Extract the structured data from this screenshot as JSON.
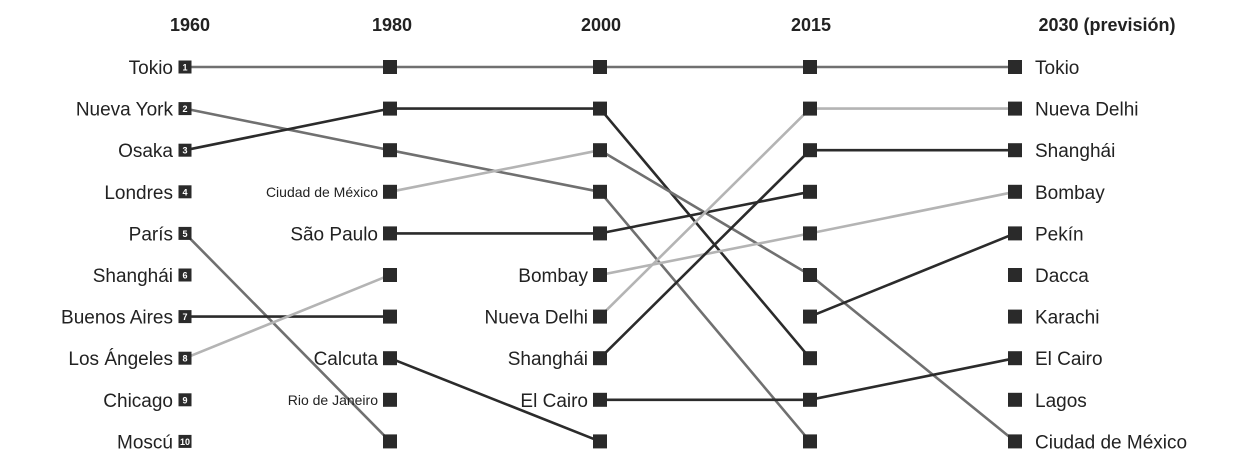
{
  "chart_data": {
    "type": "bump",
    "columns": [
      "1960",
      "1980",
      "2000",
      "2015",
      "2030 (previsión)"
    ],
    "ranks": [
      1,
      2,
      3,
      4,
      5,
      6,
      7,
      8,
      9,
      10
    ],
    "rank_labels": [
      "1",
      "2",
      "3",
      "4",
      "5",
      "6",
      "7",
      "8",
      "9",
      "10"
    ],
    "labels": [
      [
        "Tokio",
        "Nueva York",
        "Osaka",
        "Londres",
        "París",
        "Shanghái",
        "Buenos Aires",
        "Los Ángeles",
        "Chicago",
        "Moscú"
      ],
      [
        "",
        "",
        "",
        "Ciudad de México",
        "São Paulo",
        "",
        "",
        "Calcuta",
        "Rio de Janeiro",
        ""
      ],
      [
        "",
        "",
        "",
        "",
        "",
        "Bombay",
        "Nueva Delhi",
        "Shanghái",
        "El Cairo",
        ""
      ],
      [],
      [
        "Tokio",
        "Nueva Delhi",
        "Shanghái",
        "Bombay",
        "Pekín",
        "Dacca",
        "Karachi",
        "El Cairo",
        "Lagos",
        "Ciudad de México"
      ]
    ],
    "small_labels": [
      "Ciudad de México",
      "Rio de Janeiro"
    ],
    "colors": {
      "dark": "#2b2b2b",
      "mid": "#707070",
      "light": "#b4b4b4",
      "marker": "#2a2a2a"
    },
    "lines": [
      {
        "from": [
          1,
          1
        ],
        "to": [
          2,
          1
        ],
        "tone": "mid"
      },
      {
        "from": [
          2,
          1
        ],
        "to": [
          3,
          1
        ],
        "tone": "mid"
      },
      {
        "from": [
          3,
          1
        ],
        "to": [
          4,
          1
        ],
        "tone": "mid"
      },
      {
        "from": [
          4,
          1
        ],
        "to": [
          5,
          1
        ],
        "tone": "mid"
      },
      {
        "from": [
          1,
          2
        ],
        "to": [
          2,
          3
        ],
        "tone": "mid"
      },
      {
        "from": [
          2,
          3
        ],
        "to": [
          3,
          4
        ],
        "tone": "mid"
      },
      {
        "from": [
          3,
          4
        ],
        "to": [
          4,
          10
        ],
        "tone": "mid"
      },
      {
        "from": [
          1,
          3
        ],
        "to": [
          2,
          2
        ],
        "tone": "dark"
      },
      {
        "from": [
          2,
          2
        ],
        "to": [
          3,
          2
        ],
        "tone": "dark"
      },
      {
        "from": [
          3,
          2
        ],
        "to": [
          4,
          8
        ],
        "tone": "dark"
      },
      {
        "from": [
          1,
          5
        ],
        "to": [
          2,
          10
        ],
        "tone": "mid"
      },
      {
        "from": [
          1,
          7
        ],
        "to": [
          2,
          7
        ],
        "tone": "dark"
      },
      {
        "from": [
          1,
          8
        ],
        "to": [
          2,
          6
        ],
        "tone": "light"
      },
      {
        "from": [
          2,
          4
        ],
        "to": [
          3,
          3
        ],
        "tone": "light"
      },
      {
        "from": [
          3,
          3
        ],
        "to": [
          4,
          6
        ],
        "tone": "mid"
      },
      {
        "from": [
          4,
          6
        ],
        "to": [
          5,
          10
        ],
        "tone": "mid"
      },
      {
        "from": [
          2,
          5
        ],
        "to": [
          3,
          5
        ],
        "tone": "dark"
      },
      {
        "from": [
          3,
          5
        ],
        "to": [
          4,
          4
        ],
        "tone": "dark"
      },
      {
        "from": [
          2,
          8
        ],
        "to": [
          3,
          10
        ],
        "tone": "dark"
      },
      {
        "from": [
          3,
          6
        ],
        "to": [
          4,
          5
        ],
        "tone": "light"
      },
      {
        "from": [
          4,
          5
        ],
        "to": [
          5,
          4
        ],
        "tone": "light"
      },
      {
        "from": [
          3,
          7
        ],
        "to": [
          4,
          2
        ],
        "tone": "light"
      },
      {
        "from": [
          4,
          2
        ],
        "to": [
          5,
          2
        ],
        "tone": "light"
      },
      {
        "from": [
          3,
          8
        ],
        "to": [
          4,
          3
        ],
        "tone": "dark"
      },
      {
        "from": [
          4,
          3
        ],
        "to": [
          5,
          3
        ],
        "tone": "dark"
      },
      {
        "from": [
          3,
          9
        ],
        "to": [
          4,
          9
        ],
        "tone": "dark"
      },
      {
        "from": [
          4,
          9
        ],
        "to": [
          5,
          8
        ],
        "tone": "dark"
      },
      {
        "from": [
          4,
          7
        ],
        "to": [
          5,
          5
        ],
        "tone": "dark"
      }
    ]
  }
}
